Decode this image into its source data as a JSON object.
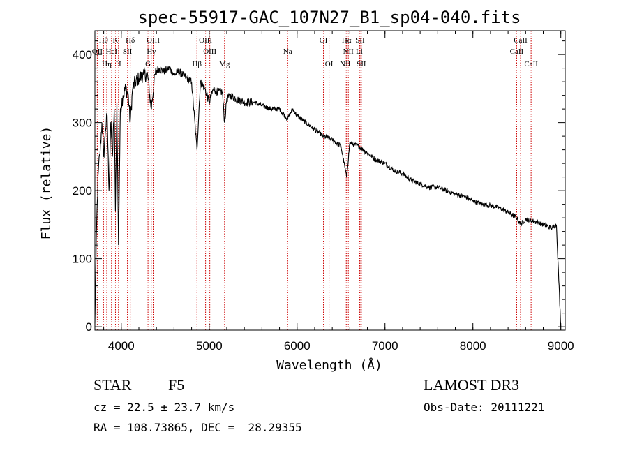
{
  "chart_data": {
    "type": "line",
    "title": "spec-55917-GAC_107N27_B1_sp04-040.fits",
    "xlabel": "Wavelength (Å)",
    "ylabel": "Flux (relative)",
    "xlim": [
      3700,
      9050
    ],
    "ylim": [
      -5,
      435
    ],
    "x_ticks": [
      4000,
      5000,
      6000,
      7000,
      8000,
      9000
    ],
    "x_tick_labels": [
      "4000",
      "5000",
      "6000",
      "7000",
      "8000",
      "9000"
    ],
    "y_ticks": [
      0,
      100,
      200,
      300,
      400
    ],
    "y_tick_labels": [
      "0",
      "100",
      "200",
      "300",
      "400"
    ],
    "series": [
      {
        "name": "flux",
        "x": [
          3700,
          3720,
          3740,
          3760,
          3780,
          3800,
          3820,
          3840,
          3860,
          3880,
          3900,
          3920,
          3933,
          3950,
          3968,
          3990,
          4020,
          4050,
          4080,
          4101,
          4130,
          4160,
          4200,
          4250,
          4300,
          4340,
          4383,
          4420,
          4480,
          4550,
          4600,
          4650,
          4700,
          4750,
          4800,
          4861,
          4900,
          4950,
          5000,
          5050,
          5100,
          5150,
          5175,
          5200,
          5250,
          5300,
          5400,
          5500,
          5600,
          5700,
          5800,
          5890,
          5950,
          6000,
          6100,
          6200,
          6300,
          6400,
          6500,
          6563,
          6600,
          6700,
          6800,
          6900,
          7000,
          7100,
          7200,
          7300,
          7400,
          7500,
          7600,
          7700,
          7800,
          7900,
          8000,
          8100,
          8200,
          8300,
          8400,
          8500,
          8542,
          8600,
          8700,
          8800,
          8900,
          8950,
          9000
        ],
        "y": [
          5,
          150,
          230,
          260,
          300,
          250,
          290,
          310,
          200,
          300,
          250,
          320,
          170,
          330,
          120,
          320,
          340,
          350,
          340,
          300,
          350,
          360,
          365,
          370,
          370,
          320,
          370,
          380,
          375,
          380,
          370,
          375,
          370,
          365,
          360,
          260,
          360,
          350,
          330,
          350,
          345,
          345,
          300,
          335,
          340,
          335,
          330,
          330,
          325,
          320,
          320,
          305,
          320,
          310,
          300,
          290,
          280,
          275,
          265,
          220,
          270,
          265,
          255,
          245,
          240,
          230,
          225,
          215,
          210,
          205,
          205,
          200,
          195,
          192,
          185,
          180,
          178,
          175,
          168,
          160,
          150,
          158,
          155,
          150,
          145,
          150,
          0
        ]
      }
    ],
    "line_markers": [
      {
        "label": "Hθ",
        "x": 3798,
        "row": 1
      },
      {
        "label": "K",
        "x": 3934,
        "row": 1
      },
      {
        "label": "Hδ",
        "x": 4102,
        "row": 1
      },
      {
        "label": "OIII",
        "x": 4363,
        "row": 1
      },
      {
        "label": "OIII",
        "x": 4959,
        "row": 1
      },
      {
        "label": "OI",
        "x": 6300,
        "row": 1
      },
      {
        "label": "Hα",
        "x": 6563,
        "row": 1
      },
      {
        "label": "SII",
        "x": 6716,
        "row": 1
      },
      {
        "label": "CaII",
        "x": 8542,
        "row": 1
      },
      {
        "label": "OII",
        "x": 3727,
        "row": 2
      },
      {
        "label": "HeI",
        "x": 3889,
        "row": 2
      },
      {
        "label": "SII",
        "x": 4070,
        "row": 2
      },
      {
        "label": "Hγ",
        "x": 4341,
        "row": 2
      },
      {
        "label": "OIII",
        "x": 5007,
        "row": 2
      },
      {
        "label": "Na",
        "x": 5893,
        "row": 2
      },
      {
        "label": "NII",
        "x": 6583,
        "row": 2
      },
      {
        "label": "Li",
        "x": 6708,
        "row": 2
      },
      {
        "label": "CaII",
        "x": 8498,
        "row": 2
      },
      {
        "label": "Hη",
        "x": 3835,
        "row": 3
      },
      {
        "label": "H",
        "x": 3968,
        "row": 3
      },
      {
        "label": "G",
        "x": 4304,
        "row": 3
      },
      {
        "label": "Hβ",
        "x": 4861,
        "row": 3
      },
      {
        "label": "Mg",
        "x": 5175,
        "row": 3
      },
      {
        "label": "OI",
        "x": 6364,
        "row": 3
      },
      {
        "label": "NII",
        "x": 6548,
        "row": 3
      },
      {
        "label": "SII",
        "x": 6731,
        "row": 3
      },
      {
        "label": "CaII",
        "x": 8662,
        "row": 3
      }
    ],
    "legend": "none",
    "grid": false
  },
  "info": {
    "class_label": "STAR",
    "subclass_label": "F5",
    "redshift_text": "cz = 22.5 ± 23.7 km/s",
    "coords_text": "RA = 108.73865, DEC =  28.29355",
    "survey_label": "LAMOST DR3",
    "obs_date_text": "Obs-Date: 20111221"
  },
  "colors": {
    "axis": "#000000",
    "spectrum": "#000000",
    "marker_line": "#cc0000",
    "text": "#000000"
  }
}
